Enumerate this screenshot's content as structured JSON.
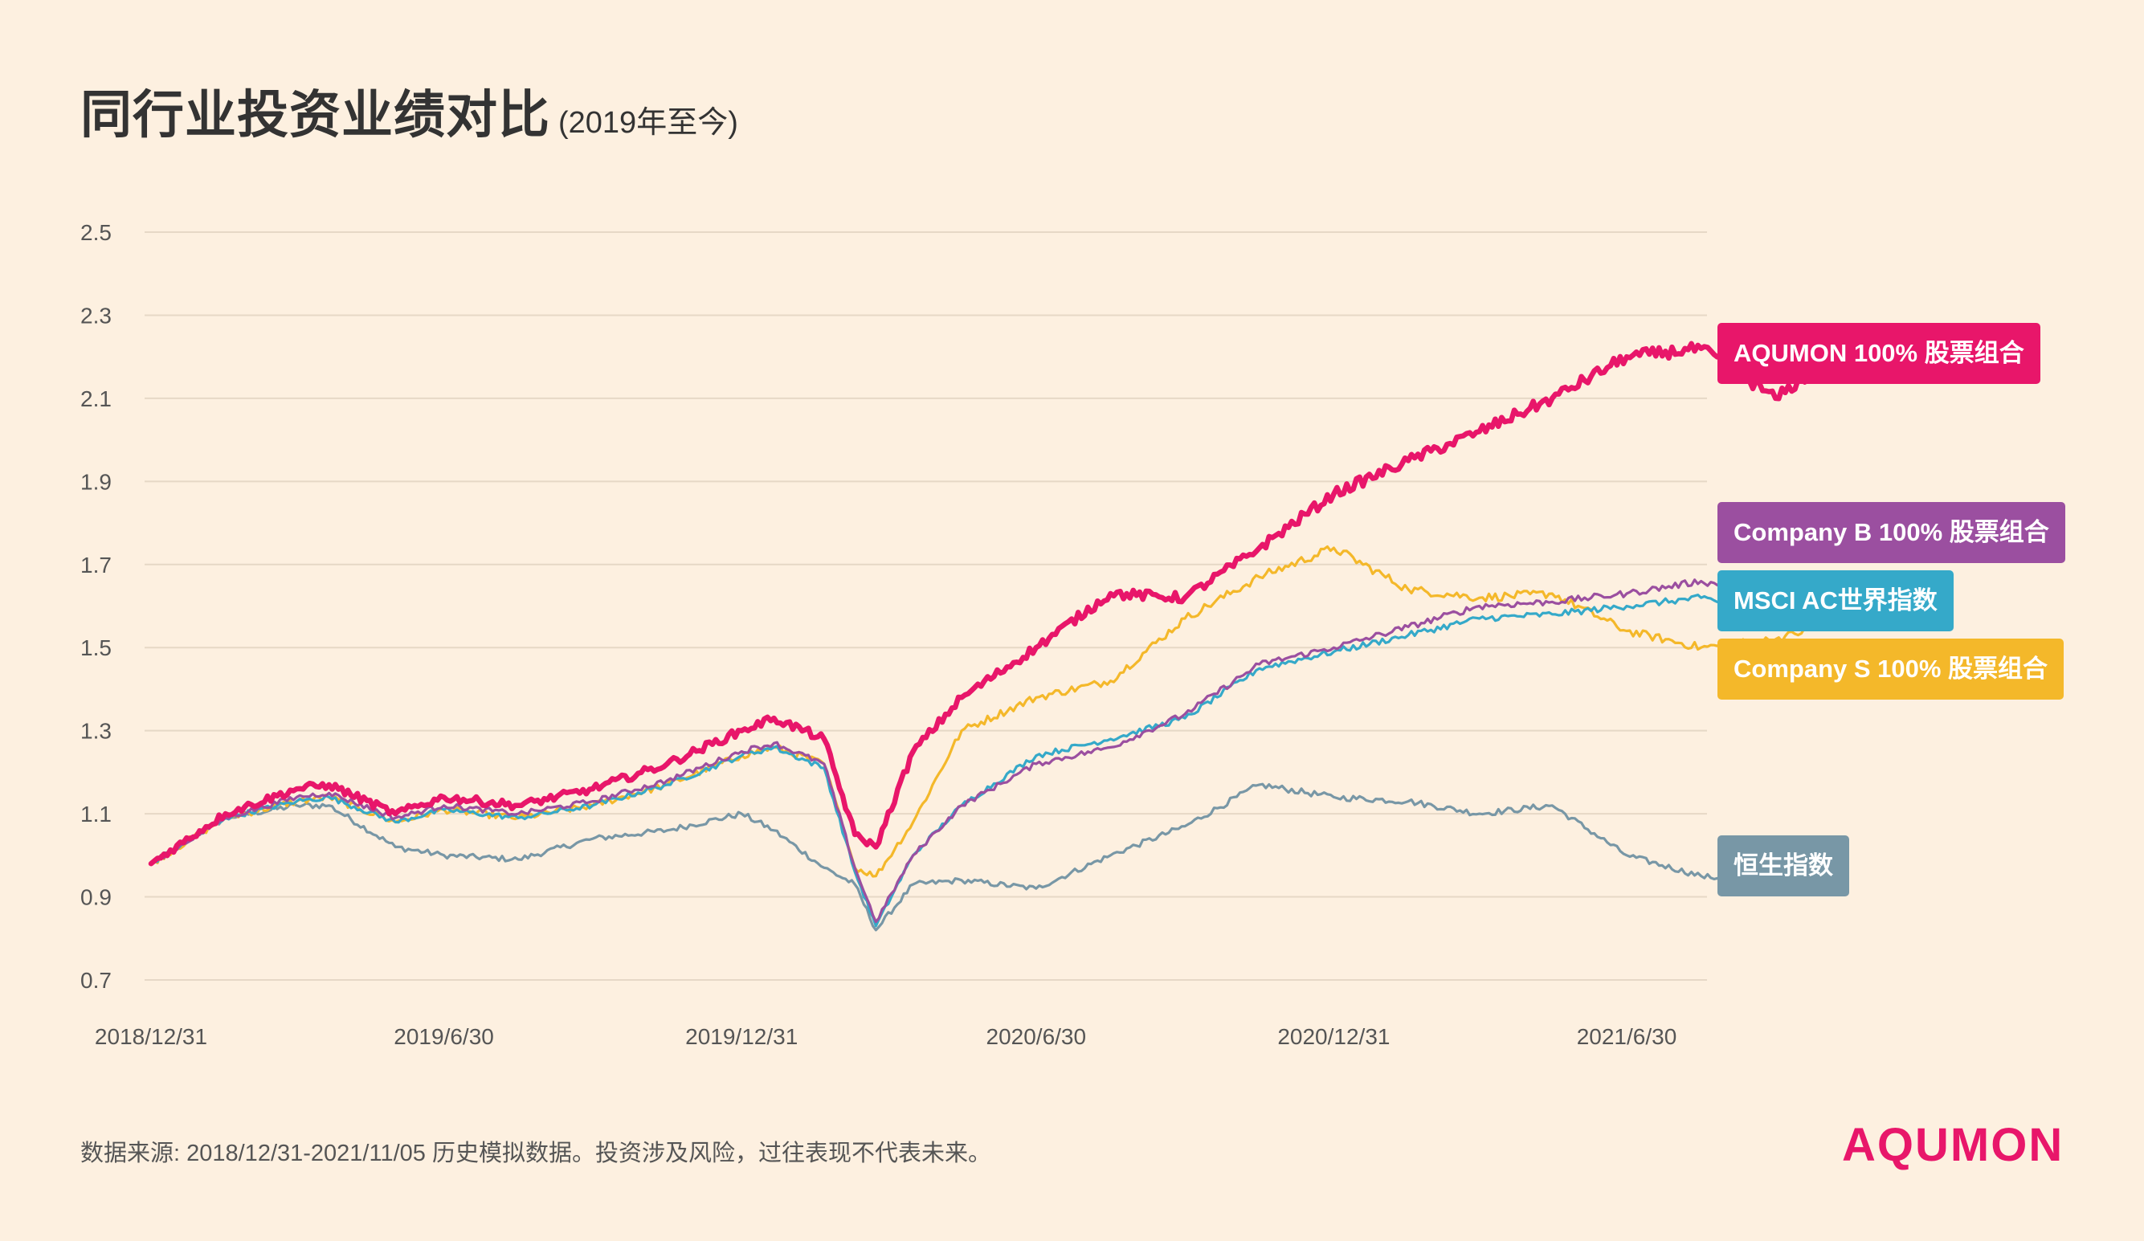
{
  "header": {
    "title": "同行业投资业绩对比",
    "subtitle": "(2019年至今)"
  },
  "footer": {
    "source": "数据来源: 2018/12/31-2021/11/05 历史模拟数据。投资涉及风险，过往表现不代表未来。"
  },
  "brand": {
    "logo": "AQUMON",
    "color": "#e8166a"
  },
  "chart_data": {
    "type": "line",
    "ylim": [
      0.7,
      2.5
    ],
    "yticks": [
      "2.5",
      "2.3",
      "2.1",
      "1.9",
      "1.7",
      "1.5",
      "1.3",
      "1.1",
      "0.9",
      "0.7"
    ],
    "xticks": [
      "2018/12/31",
      "2019/6/30",
      "2019/12/31",
      "2020/6/30",
      "2020/12/31",
      "2021/6/30"
    ],
    "x": [
      "2018/12/31",
      "2019/2/15",
      "2019/3/31",
      "2019/4/20",
      "2019/5/31",
      "2019/6/30",
      "2019/8/15",
      "2019/9/30",
      "2019/11/15",
      "2019/12/31",
      "2020/1/20",
      "2020/2/20",
      "2020/3/10",
      "2020/3/23",
      "2020/4/15",
      "2020/5/15",
      "2020/6/30",
      "2020/8/15",
      "2020/9/30",
      "2020/11/15",
      "2020/12/31",
      "2021/2/15",
      "2021/3/31",
      "2021/5/15",
      "2021/6/30",
      "2021/8/15",
      "2021/9/30",
      "2021/11/5"
    ],
    "grid": true,
    "series": [
      {
        "name": "AQUMON 100% 股票组合",
        "color": "#e8166a",
        "values": [
          0.98,
          1.1,
          1.16,
          1.17,
          1.1,
          1.14,
          1.12,
          1.16,
          1.22,
          1.3,
          1.33,
          1.28,
          1.05,
          1.02,
          1.25,
          1.38,
          1.5,
          1.63,
          1.62,
          1.74,
          1.87,
          1.95,
          2.02,
          2.1,
          2.2,
          2.22,
          2.1,
          2.2
        ]
      },
      {
        "name": "Company B 100% 股票组合",
        "color": "#9b4fa0",
        "values": [
          0.98,
          1.09,
          1.14,
          1.15,
          1.09,
          1.12,
          1.1,
          1.13,
          1.18,
          1.25,
          1.27,
          1.22,
          0.97,
          0.84,
          1.0,
          1.12,
          1.22,
          1.26,
          1.34,
          1.46,
          1.5,
          1.55,
          1.6,
          1.61,
          1.63,
          1.66,
          1.62,
          1.67
        ]
      },
      {
        "name": "MSCI AC世界指数",
        "color": "#35a9c9",
        "values": [
          0.98,
          1.09,
          1.13,
          1.14,
          1.08,
          1.11,
          1.09,
          1.12,
          1.17,
          1.24,
          1.26,
          1.21,
          0.96,
          0.83,
          1.0,
          1.12,
          1.24,
          1.28,
          1.33,
          1.45,
          1.49,
          1.53,
          1.57,
          1.58,
          1.6,
          1.62,
          1.58,
          1.63
        ]
      },
      {
        "name": "Company S 100% 股票组合",
        "color": "#f4b82a",
        "values": [
          0.98,
          1.09,
          1.13,
          1.14,
          1.08,
          1.11,
          1.09,
          1.12,
          1.17,
          1.24,
          1.26,
          1.22,
          0.97,
          0.95,
          1.08,
          1.3,
          1.38,
          1.42,
          1.57,
          1.67,
          1.74,
          1.64,
          1.62,
          1.63,
          1.54,
          1.5,
          1.52,
          1.56
        ]
      },
      {
        "name": "恒生指数",
        "color": "#7897a6",
        "values": [
          0.98,
          1.09,
          1.12,
          1.12,
          1.02,
          1.0,
          0.99,
          1.04,
          1.06,
          1.1,
          1.06,
          0.97,
          0.93,
          0.82,
          0.93,
          0.94,
          0.92,
          1.0,
          1.07,
          1.17,
          1.14,
          1.13,
          1.1,
          1.12,
          1.0,
          0.95,
          0.93,
          0.98
        ]
      }
    ]
  }
}
